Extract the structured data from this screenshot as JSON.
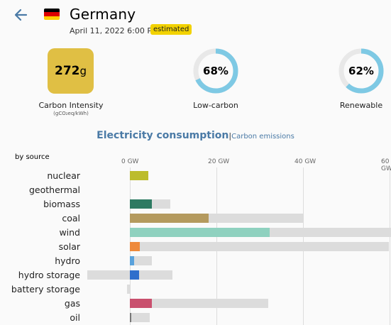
{
  "header": {
    "country": "Germany",
    "datetime": "April 11, 2022 6:00 PM",
    "badge": "estimated"
  },
  "metrics": {
    "carbon_intensity": {
      "value": "272",
      "unit": "g",
      "label": "Carbon Intensity",
      "sublabel": "(gCO₂eq/kWh)"
    },
    "low_carbon": {
      "value": "68%",
      "fraction": 0.68,
      "label": "Low-carbon"
    },
    "renewable": {
      "value": "62%",
      "fraction": 0.62,
      "label": "Renewable"
    }
  },
  "tabs": {
    "active": "Electricity consumption",
    "separator": "|",
    "other": "Carbon emissions"
  },
  "chart_data": {
    "type": "bar",
    "title": "Electricity consumption",
    "ylabel": "by source",
    "x_ticks": [
      "0 GW",
      "20 GW",
      "40 GW",
      "60 GW"
    ],
    "xlim": [
      -5,
      60
    ],
    "categories": [
      "nuclear",
      "geothermal",
      "biomass",
      "coal",
      "wind",
      "solar",
      "hydro",
      "hydro storage",
      "battery storage",
      "gas",
      "oil"
    ],
    "series": [
      {
        "values": [
          4.2,
          0,
          5.1,
          18.2,
          32.3,
          2.3,
          1.0,
          2.1,
          0,
          5.0,
          0.3
        ]
      }
    ],
    "capacity": [
      4.2,
      0,
      9.4,
      40.2,
      60.5,
      59.8,
      5.0,
      9.9,
      -0.5,
      31.9,
      4.6
    ],
    "storage_min": [
      0,
      0,
      0,
      0,
      0,
      0,
      0,
      -9.9,
      -0.6,
      0,
      0
    ],
    "colors": [
      "#bcbc2c",
      "#888888",
      "#2d7a62",
      "#b49a5e",
      "#8fd1bf",
      "#ee8a3c",
      "#5aa2dc",
      "#2f6fcc",
      "#8a8a8a",
      "#c9506e",
      "#777777"
    ]
  }
}
